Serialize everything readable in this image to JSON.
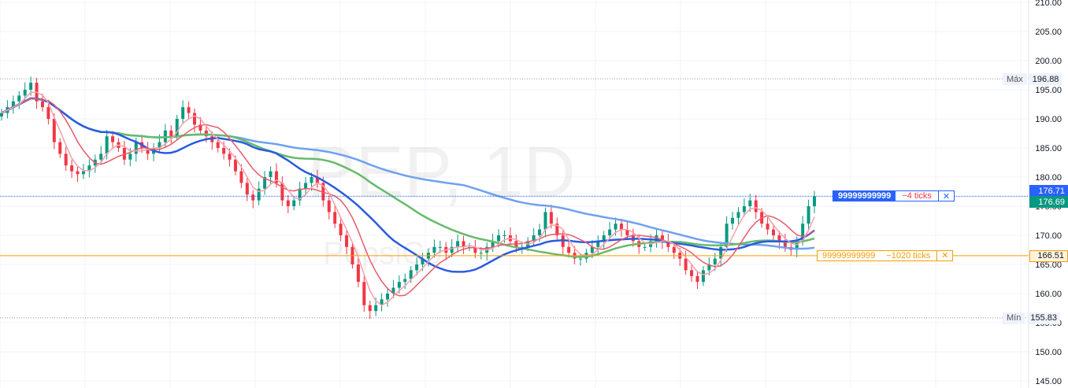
{
  "symbol_watermark": "PEP, 1D",
  "company_watermark": "PepsiCo",
  "chart_data": {
    "type": "candlestick",
    "y_ticks": [
      "210.00",
      "205.00",
      "200.00",
      "195.00",
      "190.00",
      "185.00",
      "180.00",
      "175.00",
      "170.00",
      "165.00",
      "160.00",
      "155.00",
      "150.00",
      "145.00"
    ],
    "ylim": [
      145,
      210
    ],
    "max": {
      "label": "Máx",
      "value": "196.88",
      "price": 196.88
    },
    "min": {
      "label": "Mín",
      "value": "155.83",
      "price": 155.83
    },
    "price_labels": [
      {
        "value": "176.71",
        "price": 176.71,
        "bg": "#2962ff",
        "color": "#ffffff"
      },
      {
        "value": "176.69",
        "price": 176.69,
        "bg": "#089981",
        "color": "#ffffff"
      },
      {
        "value": "166.51",
        "price": 166.51,
        "bg": "#fff3e0",
        "color": "#131722"
      }
    ],
    "orders": [
      {
        "qty": "99999999999",
        "ticks": "−4 ticks",
        "close": "✕",
        "price": 176.71,
        "color": "#2962ff",
        "filled": true
      },
      {
        "qty": "99999999999",
        "ticks": "−1020 ticks",
        "close": "✕",
        "price": 166.51,
        "color": "#f59d00",
        "filled": false
      }
    ],
    "colors": {
      "up": "#089981",
      "down": "#f23645",
      "ma_fast": "#f7a1a9",
      "ma_mid": "#e85b6a",
      "ma_50": "#2c5be0",
      "ma_100": "#66bb6a",
      "ma_200": "#6ea2ee",
      "grid": "#f0f3fa"
    },
    "closes": [
      191,
      192,
      193,
      194,
      195,
      196.2,
      193,
      192,
      190,
      186,
      184,
      182,
      181,
      180.5,
      181,
      182,
      183,
      184,
      187,
      186,
      185,
      183,
      184,
      186,
      185,
      184,
      185,
      186,
      188,
      187,
      190,
      192,
      191,
      189,
      188,
      187,
      186,
      185,
      184,
      183,
      181,
      179,
      177,
      176,
      178,
      180,
      181,
      179,
      176,
      175,
      176,
      178,
      179,
      180,
      179,
      176,
      174,
      172,
      170,
      168,
      165,
      162,
      158,
      157,
      158,
      159,
      160,
      161,
      162,
      162.5,
      164,
      165,
      166,
      167,
      168,
      168,
      167,
      168,
      169,
      168,
      168,
      167,
      167,
      168,
      169,
      170,
      170,
      169,
      168,
      168,
      169,
      170,
      171,
      174,
      172,
      170,
      168,
      167,
      166,
      166,
      167,
      168,
      169,
      170,
      171,
      172,
      171,
      170,
      169,
      168,
      168,
      169,
      170,
      169,
      168,
      167,
      166,
      164,
      163,
      162,
      164,
      165,
      166,
      168,
      172,
      173,
      174,
      175,
      176,
      174,
      172,
      171,
      170,
      169,
      168,
      167.5,
      169,
      172,
      175,
      176.7
    ]
  }
}
